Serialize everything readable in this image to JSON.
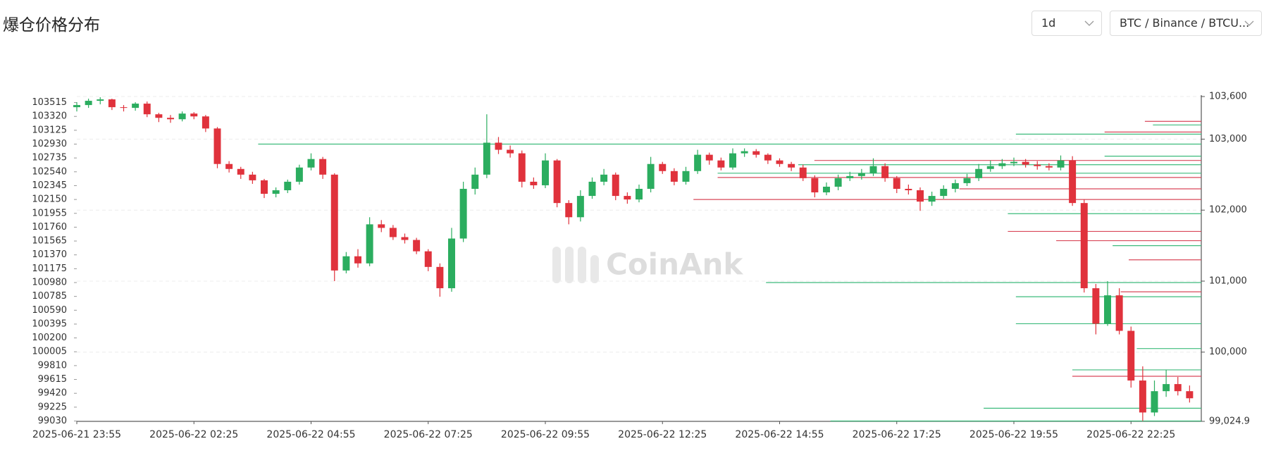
{
  "header": {
    "title": "爆仓价格分布",
    "interval": "1d",
    "symbol": "BTC / Binance / BTCU..."
  },
  "watermark": "CoinAnk",
  "chart_data": {
    "type": "candlestick",
    "up_color": "#2bad5f",
    "down_color": "#e0323c",
    "xlim": [
      0,
      96
    ],
    "xticks": [
      {
        "value": 0,
        "label": "2025-06-21 23:55"
      },
      {
        "value": 10,
        "label": "2025-06-22 02:25"
      },
      {
        "value": 20,
        "label": "2025-06-22 04:55"
      },
      {
        "value": 30,
        "label": "2025-06-22 07:25"
      },
      {
        "value": 40,
        "label": "2025-06-22 09:55"
      },
      {
        "value": 50,
        "label": "2025-06-22 12:25"
      },
      {
        "value": 60,
        "label": "2025-06-22 14:55"
      },
      {
        "value": 70,
        "label": "2025-06-22 17:25"
      },
      {
        "value": 80,
        "label": "2025-06-22 19:55"
      },
      {
        "value": 90,
        "label": "2025-06-22 22:25"
      }
    ],
    "ylim": [
      99024.9,
      103600
    ],
    "yticks": [
      103515,
      103320,
      103125,
      102930,
      102735,
      102540,
      102345,
      102150,
      101955,
      101760,
      101565,
      101370,
      101175,
      100980,
      100785,
      100590,
      100395,
      100200,
      100005,
      99810,
      99615,
      99420,
      99225,
      99030
    ],
    "y2lim": [
      99024.9,
      103600
    ],
    "y2ticks": [
      {
        "value": 103600,
        "label": "103,600"
      },
      {
        "value": 103000,
        "label": "103,000"
      },
      {
        "value": 102000,
        "label": "102,000"
      },
      {
        "value": 101000,
        "label": "101,000"
      },
      {
        "value": 100000,
        "label": "100,000"
      },
      {
        "value": 99024.9,
        "label": "99,024.9"
      }
    ],
    "grid": true,
    "open": [
      103450,
      103480,
      103540,
      103560,
      103450,
      103440,
      103500,
      103350,
      103300,
      103280,
      103360,
      103320,
      103150,
      102650,
      102580,
      102500,
      102420,
      102230,
      102280,
      102400,
      102600,
      102720,
      102500,
      101150,
      101350,
      101250,
      101800,
      101750,
      101620,
      101580,
      101420,
      101200,
      100900,
      101600,
      102300,
      102500,
      102950,
      102850,
      102800,
      102400,
      102350,
      102700,
      102100,
      101900,
      102200,
      102400,
      102500,
      102200,
      102150,
      102300,
      102650,
      102550,
      102400,
      102550,
      102780,
      102700,
      102600,
      102800,
      102830,
      102780,
      102700,
      102650,
      102600,
      102450,
      102250,
      102330,
      102450,
      102480,
      102520,
      102620,
      102450,
      102300,
      102280,
      102120,
      102200,
      102300,
      102380,
      102450,
      102580,
      102620,
      102660,
      102680,
      102640,
      102620,
      102600,
      102700,
      102100,
      100900,
      100400,
      100800,
      100300,
      99600,
      99150,
      99450,
      99550,
      99450
    ],
    "high": [
      103520,
      103570,
      103590,
      103570,
      103480,
      103520,
      103530,
      103370,
      103340,
      103390,
      103380,
      103340,
      103170,
      102690,
      102610,
      102540,
      102440,
      102320,
      102430,
      102640,
      102800,
      102750,
      102520,
      101410,
      101450,
      101900,
      101860,
      101790,
      101670,
      101610,
      101450,
      101250,
      101750,
      102400,
      102600,
      103350,
      103030,
      102910,
      102840,
      102460,
      102800,
      102720,
      102140,
      102280,
      102460,
      102580,
      102530,
      102250,
      102360,
      102750,
      102680,
      102590,
      102610,
      102850,
      102810,
      102740,
      102870,
      102870,
      102860,
      102800,
      102730,
      102680,
      102640,
      102490,
      102390,
      102500,
      102540,
      102580,
      102730,
      102660,
      102480,
      102360,
      102320,
      102260,
      102350,
      102430,
      102510,
      102650,
      102700,
      102720,
      102740,
      102720,
      102690,
      102660,
      102770,
      102760,
      102150,
      100960,
      101000,
      100900,
      100360,
      99800,
      99600,
      99750,
      99650,
      99530
    ],
    "low": [
      103390,
      103440,
      103490,
      103410,
      103390,
      103400,
      103310,
      103240,
      103230,
      103250,
      103280,
      103100,
      102590,
      102530,
      102440,
      102370,
      102170,
      102180,
      102240,
      102360,
      102560,
      102440,
      101000,
      101110,
      101190,
      101210,
      101690,
      101580,
      101530,
      101380,
      101140,
      100780,
      100850,
      101550,
      102220,
      102450,
      102790,
      102740,
      102320,
      102300,
      102310,
      102040,
      101800,
      101840,
      102160,
      102350,
      102140,
      102090,
      102110,
      102250,
      102510,
      102350,
      102360,
      102510,
      102640,
      102560,
      102570,
      102750,
      102740,
      102650,
      102610,
      102550,
      102410,
      102180,
      102210,
      102280,
      102410,
      102430,
      102480,
      102400,
      102240,
      102220,
      101990,
      102060,
      102160,
      102250,
      102340,
      102410,
      102540,
      102580,
      102620,
      102600,
      102570,
      102560,
      102560,
      102060,
      100840,
      100250,
      100370,
      100250,
      99500,
      99030,
      99100,
      99370,
      99390,
      99290
    ],
    "close": [
      103480,
      103540,
      103560,
      103450,
      103440,
      103500,
      103350,
      103300,
      103280,
      103360,
      103320,
      103150,
      102650,
      102580,
      102500,
      102420,
      102230,
      102280,
      102400,
      102600,
      102720,
      102500,
      101150,
      101350,
      101250,
      101800,
      101750,
      101620,
      101580,
      101420,
      101200,
      100900,
      101600,
      102300,
      102500,
      102950,
      102850,
      102800,
      102400,
      102350,
      102700,
      102100,
      101900,
      102200,
      102400,
      102500,
      102200,
      102150,
      102300,
      102650,
      102550,
      102400,
      102550,
      102780,
      102700,
      102600,
      102800,
      102830,
      102780,
      102700,
      102650,
      102600,
      102450,
      102250,
      102330,
      102450,
      102480,
      102520,
      102620,
      102450,
      102300,
      102280,
      102120,
      102200,
      102300,
      102380,
      102450,
      102580,
      102620,
      102660,
      102680,
      102640,
      102620,
      102600,
      102700,
      102100,
      100900,
      100400,
      100800,
      100300,
      99600,
      99150,
      99450,
      99550,
      99450,
      99350
    ],
    "long_levels": {
      "color": "#3dbb7c",
      "prices": [
        102930,
        100980,
        99030,
        102520,
        102640,
        101950,
        103070,
        100780,
        100400,
        99210,
        99750,
        101500,
        100050,
        103200,
        102760
      ],
      "amounts": [
        1170,
        540,
        460,
        600,
        500,
        240,
        230,
        230,
        230,
        270,
        160,
        110,
        80,
        60,
        120
      ]
    },
    "short_levels": {
      "color": "#d9485a",
      "prices": [
        102150,
        102460,
        102700,
        103100,
        101700,
        101570,
        99660,
        100850,
        102300,
        101300,
        103250
      ],
      "amounts": [
        630,
        600,
        480,
        120,
        240,
        180,
        160,
        100,
        300,
        90,
        70
      ]
    }
  }
}
